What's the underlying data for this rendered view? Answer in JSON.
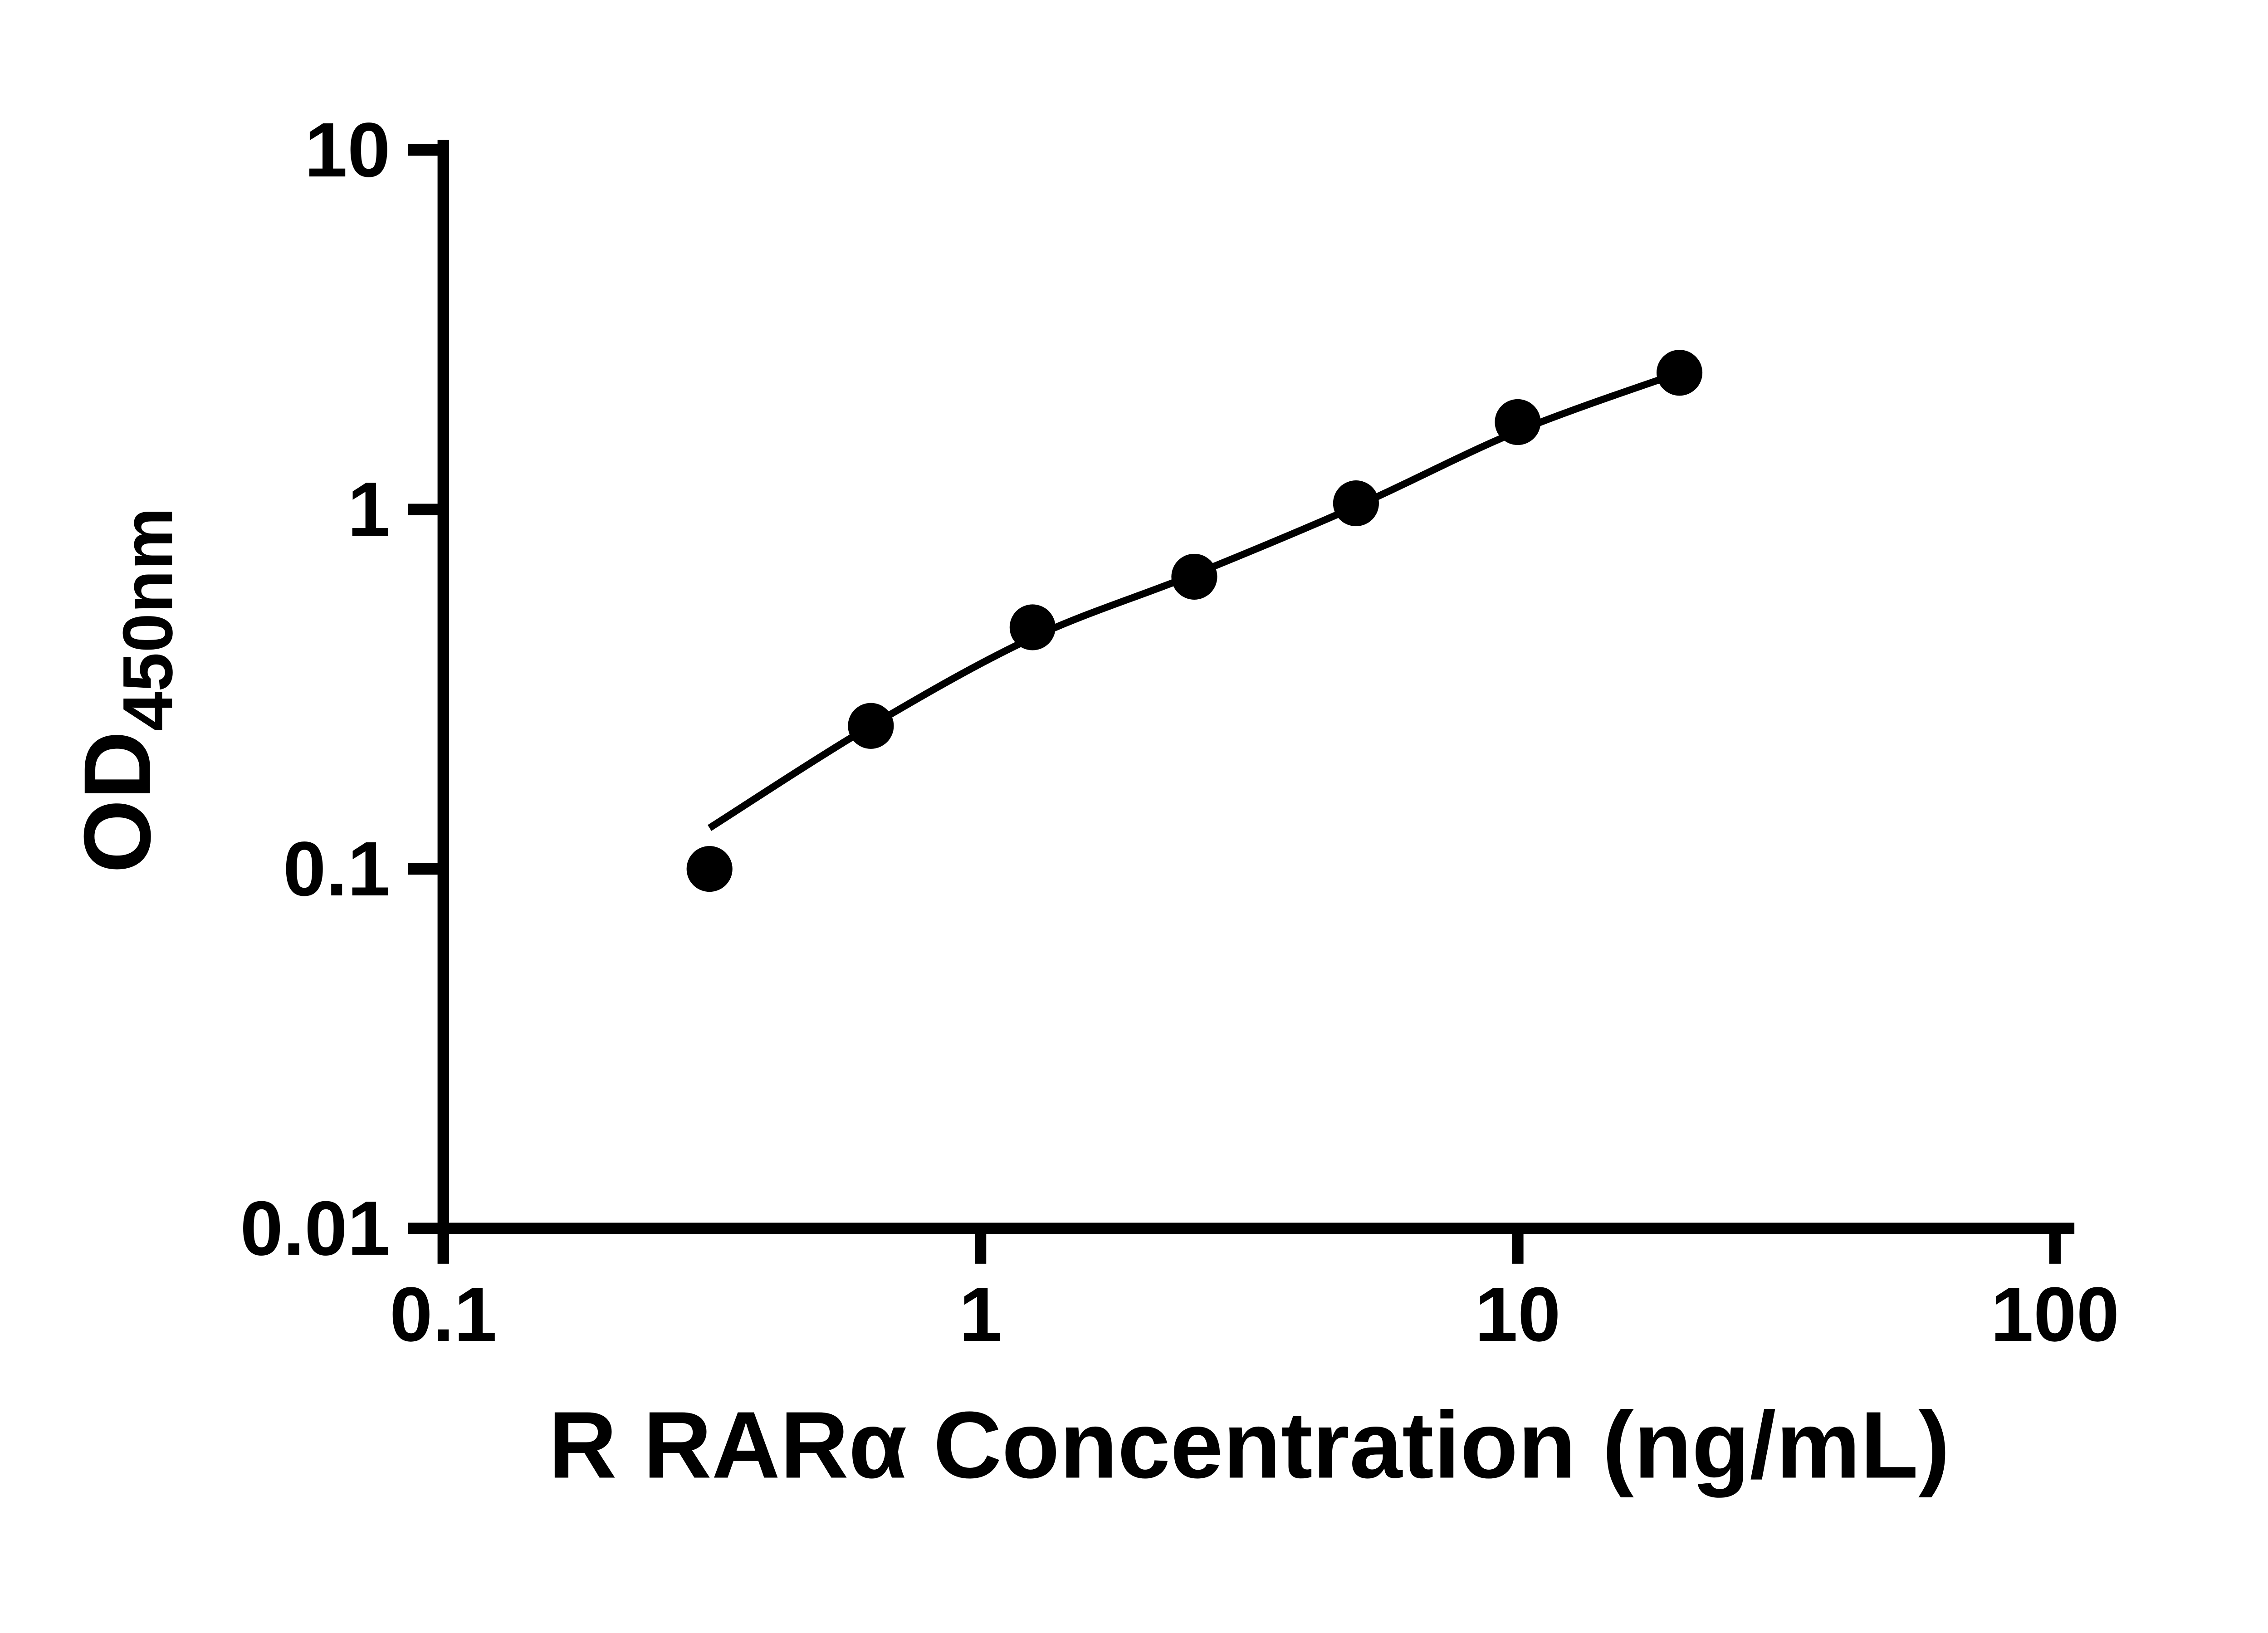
{
  "figure": {
    "background_color": "#ffffff",
    "foreground_color": "#000000"
  },
  "chart_data": {
    "type": "scatter",
    "title": "",
    "xlabel": "R RARα Concentration (ng/mL)",
    "ylabel_main": "OD",
    "ylabel_sub": "450nm",
    "x_scale": "log",
    "y_scale": "log",
    "xlim": [
      0.1,
      100
    ],
    "ylim": [
      0.01,
      10
    ],
    "grid": false,
    "legend_position": "none",
    "marker_color": "#000000",
    "line_color": "#000000",
    "x_ticks": [
      {
        "value": 0.1,
        "label": "0.1"
      },
      {
        "value": 1,
        "label": "1"
      },
      {
        "value": 10,
        "label": "10"
      },
      {
        "value": 100,
        "label": "100"
      }
    ],
    "y_ticks": [
      {
        "value": 0.01,
        "label": "0.01"
      },
      {
        "value": 0.1,
        "label": "0.1"
      },
      {
        "value": 1,
        "label": "1"
      },
      {
        "value": 10,
        "label": "10"
      }
    ],
    "series": [
      {
        "marker": "circle",
        "color": "#000000",
        "points": [
          {
            "x": 0.313,
            "y": 0.1
          },
          {
            "x": 0.625,
            "y": 0.25
          },
          {
            "x": 1.25,
            "y": 0.47
          },
          {
            "x": 2.5,
            "y": 0.65
          },
          {
            "x": 5,
            "y": 1.04
          },
          {
            "x": 10,
            "y": 1.75
          },
          {
            "x": 20,
            "y": 2.4
          }
        ]
      }
    ],
    "fit_curve": {
      "type": "smooth",
      "points": [
        {
          "x": 0.313,
          "y": 0.13
        },
        {
          "x": 0.625,
          "y": 0.25
        },
        {
          "x": 1.25,
          "y": 0.44
        },
        {
          "x": 2.5,
          "y": 0.66
        },
        {
          "x": 5,
          "y": 1.02
        },
        {
          "x": 10,
          "y": 1.65
        },
        {
          "x": 20,
          "y": 2.4
        }
      ]
    }
  }
}
